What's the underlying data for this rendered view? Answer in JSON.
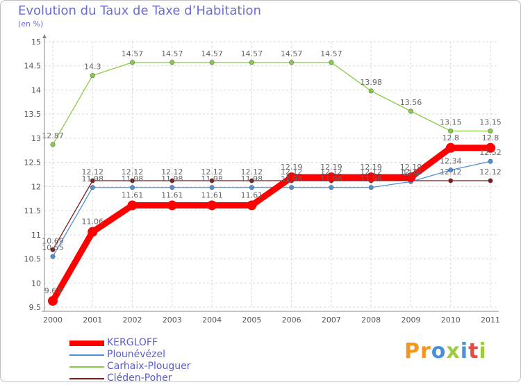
{
  "title": "Evolution du Taux de Taxe d’Habitation",
  "unit": "(en %)",
  "brand": {
    "text": "Proxiti",
    "colors": [
      "#f7941d",
      "#f7941d",
      "#4a90d9",
      "#9ccc3c",
      "#4a90d9",
      "#e84c3d",
      "#9ccc3c"
    ]
  },
  "chart_data": {
    "type": "line",
    "x": [
      "2000",
      "2001",
      "2002",
      "2003",
      "2004",
      "2005",
      "2006",
      "2007",
      "2008",
      "2009",
      "2010",
      "2011"
    ],
    "ylim": [
      9.5,
      15
    ],
    "yticks": [
      "9.5",
      "10",
      "10.5",
      "11",
      "11.5",
      "12",
      "12.5",
      "13",
      "13.5",
      "14",
      "14.5",
      "15"
    ],
    "grid": true,
    "legend_position": "bottom-left",
    "series": [
      {
        "name": "KERGLOFF",
        "color": "#ff0000",
        "values": [
          9.63,
          11.06,
          11.61,
          11.61,
          11.61,
          11.61,
          12.19,
          12.19,
          12.19,
          12.19,
          12.8,
          12.8
        ],
        "labels": [
          "9.63",
          "11.06",
          "11.61",
          "11.61",
          "11.61",
          "11.61",
          "12.19",
          "12.19",
          "12.19",
          "12.19",
          "12.8",
          "12.8"
        ]
      },
      {
        "name": "Plounévézel",
        "color": "#4a90d9",
        "values": [
          10.55,
          11.98,
          11.98,
          11.98,
          11.98,
          11.98,
          11.98,
          11.98,
          11.98,
          12.1,
          12.34,
          12.52
        ],
        "labels": [
          "10.55",
          "11.98",
          "11.98",
          "11.98",
          "11.98",
          "11.98",
          "11.98",
          "11.98",
          "11.98",
          "12.1",
          "12.34",
          "12.52"
        ]
      },
      {
        "name": "Carhaix-Plouguer",
        "color": "#88cc44",
        "values": [
          12.87,
          14.3,
          14.57,
          14.57,
          14.57,
          14.57,
          14.57,
          14.57,
          13.98,
          13.56,
          13.15,
          13.15
        ],
        "labels": [
          "12.87",
          "14.3",
          "14.57",
          "14.57",
          "14.57",
          "14.57",
          "14.57",
          "14.57",
          "13.98",
          "13.56",
          "13.15",
          "13.15"
        ]
      },
      {
        "name": "Cléden-Poher",
        "color": "#7a1a1a",
        "values": [
          10.69,
          12.12,
          12.12,
          12.12,
          12.12,
          12.12,
          12.12,
          12.12,
          12.12,
          12.12,
          12.12,
          12.12
        ],
        "labels": [
          "10.69",
          "12.12",
          "12.12",
          "12.12",
          "12.12",
          "12.12",
          "12.12",
          "12.12",
          "12.12",
          "12.12",
          "12.12",
          "12.12"
        ]
      }
    ]
  }
}
